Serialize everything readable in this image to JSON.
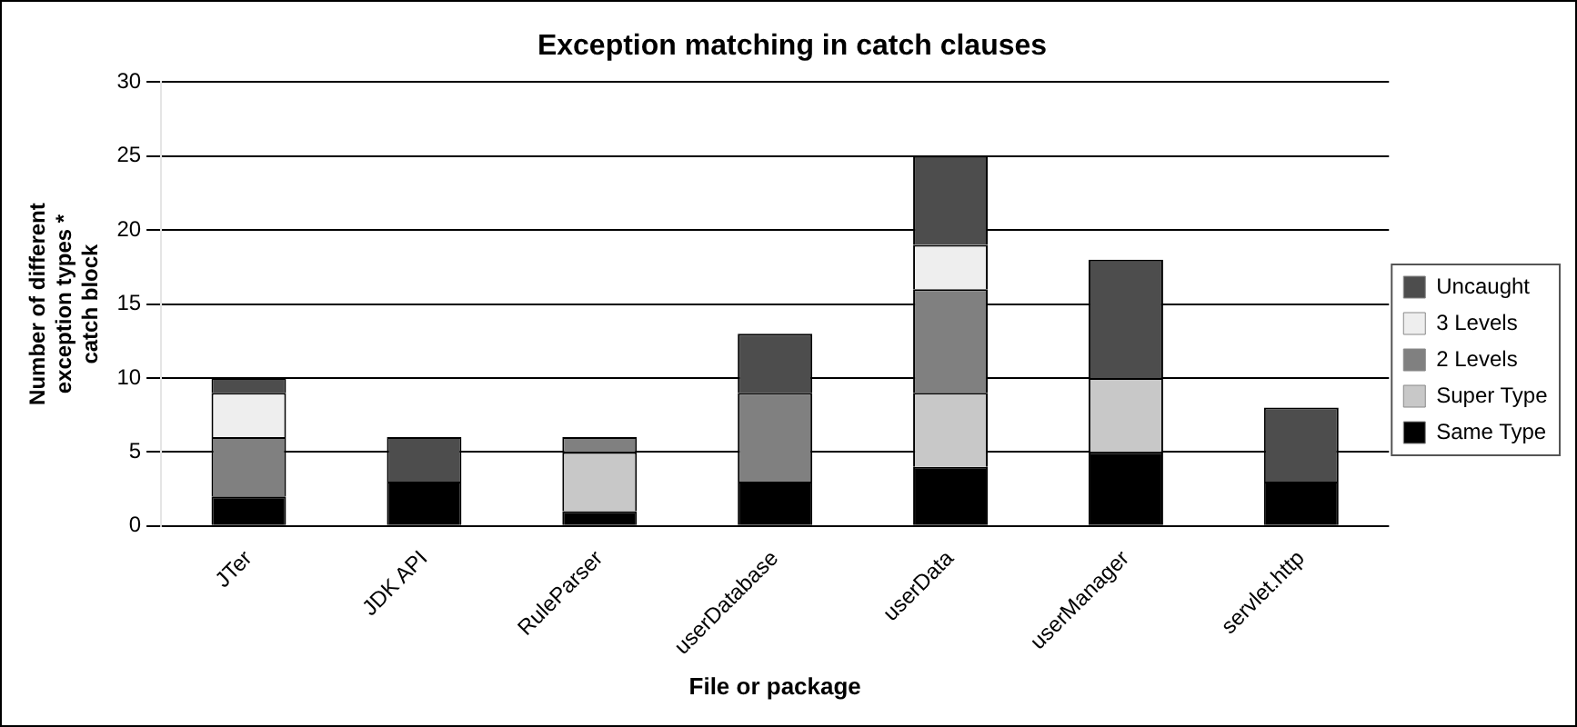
{
  "chart_data": {
    "type": "bar",
    "title": "Exception matching in catch clauses",
    "xlabel": "File or package",
    "ylabel": "Number of different exception types * catch block",
    "categories": [
      "JTer",
      "JDK API",
      "RuleParser",
      "userDatabase",
      "userData",
      "userManager",
      "servlet.http"
    ],
    "stacked": true,
    "series": [
      {
        "name": "Same Type",
        "color": "#000000",
        "values": [
          2,
          3,
          1,
          3,
          4,
          5,
          3
        ]
      },
      {
        "name": "Super Type",
        "color": "#c8c8c8",
        "values": [
          0,
          0,
          4,
          0,
          5,
          5,
          0
        ]
      },
      {
        "name": "2 Levels",
        "color": "#808080",
        "values": [
          4,
          0,
          1,
          6,
          7,
          0,
          0
        ]
      },
      {
        "name": "3 Levels",
        "color": "#eeeeee",
        "values": [
          3,
          0,
          0,
          0,
          3,
          0,
          0
        ]
      },
      {
        "name": "Uncaught",
        "color": "#4d4d4d",
        "values": [
          1,
          3,
          0,
          4,
          6,
          8,
          5
        ]
      }
    ],
    "ylim": [
      0,
      30
    ],
    "yticks": [
      0,
      5,
      10,
      15,
      20,
      25,
      30
    ],
    "grid": "y",
    "legend": "right"
  }
}
